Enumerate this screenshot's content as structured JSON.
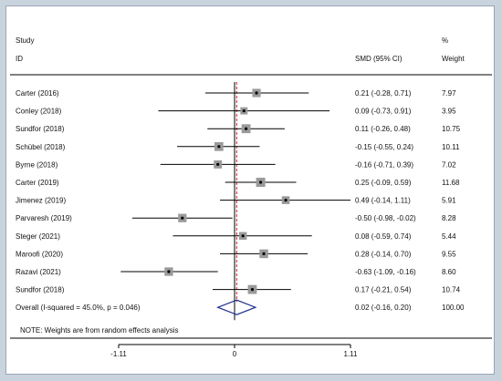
{
  "chart_data": {
    "type": "forest",
    "header": {
      "study_line1": "Study",
      "study_line2": "ID",
      "effect_label": "SMD (95% CI)",
      "weight_line1": "%",
      "weight_line2": "Weight"
    },
    "studies": [
      {
        "label": "Carter  (2016)",
        "estimate": 0.21,
        "lower": -0.28,
        "upper": 0.71,
        "ci_text": "0.21 (-0.28, 0.71)",
        "weight": 7.97,
        "weight_text": "7.97"
      },
      {
        "label": "Conley  (2018)",
        "estimate": 0.09,
        "lower": -0.73,
        "upper": 0.91,
        "ci_text": "0.09 (-0.73, 0.91)",
        "weight": 3.95,
        "weight_text": "3.95"
      },
      {
        "label": "Sundfor  (2018)",
        "estimate": 0.11,
        "lower": -0.26,
        "upper": 0.48,
        "ci_text": "0.11 (-0.26, 0.48)",
        "weight": 10.75,
        "weight_text": "10.75"
      },
      {
        "label": "Schübel  (2018)",
        "estimate": -0.15,
        "lower": -0.55,
        "upper": 0.24,
        "ci_text": "-0.15 (-0.55, 0.24)",
        "weight": 10.11,
        "weight_text": "10.11"
      },
      {
        "label": "Byrne  (2018)",
        "estimate": -0.16,
        "lower": -0.71,
        "upper": 0.39,
        "ci_text": "-0.16 (-0.71, 0.39)",
        "weight": 7.02,
        "weight_text": "7.02"
      },
      {
        "label": "Carter  (2019)",
        "estimate": 0.25,
        "lower": -0.09,
        "upper": 0.59,
        "ci_text": "0.25 (-0.09, 0.59)",
        "weight": 11.68,
        "weight_text": "11.68"
      },
      {
        "label": "Jimenez  (2019)",
        "estimate": 0.49,
        "lower": -0.14,
        "upper": 1.11,
        "ci_text": "0.49 (-0.14, 1.11)",
        "weight": 5.91,
        "weight_text": "5.91"
      },
      {
        "label": "Parvaresh  (2019)",
        "estimate": -0.5,
        "lower": -0.98,
        "upper": -0.02,
        "ci_text": "-0.50 (-0.98, -0.02)",
        "weight": 8.28,
        "weight_text": "8.28"
      },
      {
        "label": "Steger  (2021)",
        "estimate": 0.08,
        "lower": -0.59,
        "upper": 0.74,
        "ci_text": "0.08 (-0.59, 0.74)",
        "weight": 5.44,
        "weight_text": "5.44"
      },
      {
        "label": "Maroofi  (2020)",
        "estimate": 0.28,
        "lower": -0.14,
        "upper": 0.7,
        "ci_text": "0.28 (-0.14, 0.70)",
        "weight": 9.55,
        "weight_text": "9.55"
      },
      {
        "label": "Razavi  (2021)",
        "estimate": -0.63,
        "lower": -1.09,
        "upper": -0.16,
        "ci_text": "-0.63 (-1.09, -0.16)",
        "weight": 8.6,
        "weight_text": "8.60"
      },
      {
        "label": "Sundfor  (2018)",
        "estimate": 0.17,
        "lower": -0.21,
        "upper": 0.54,
        "ci_text": "0.17 (-0.21, 0.54)",
        "weight": 10.74,
        "weight_text": "10.74"
      }
    ],
    "overall": {
      "label": "Overall  (I-squared = 45.0%, p = 0.046)",
      "estimate": 0.02,
      "lower": -0.16,
      "upper": 0.2,
      "ci_text": "0.02 (-0.16, 0.20)",
      "weight_text": "100.00"
    },
    "note": "NOTE: Weights are from random effects analysis",
    "x_ticks": [
      {
        "value": -1.11,
        "label": "-1.11"
      },
      {
        "value": 0,
        "label": "0"
      },
      {
        "value": 1.11,
        "label": "1.11"
      }
    ],
    "xlim": [
      -1.11,
      1.11
    ],
    "null_line": 0,
    "colors": {
      "line": "#000000",
      "box": "#9a9a9a",
      "diamond": "#1f2f8f",
      "overall_line": "#cc2222"
    }
  }
}
